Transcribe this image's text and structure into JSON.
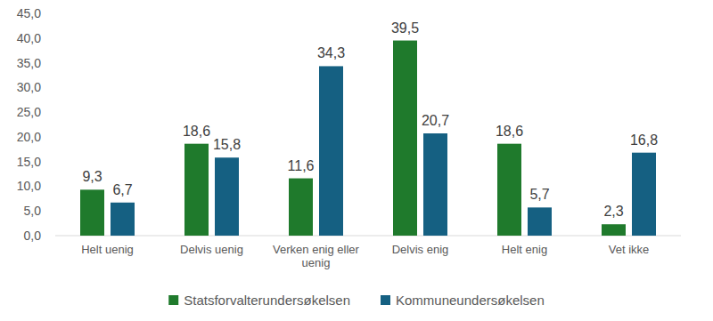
{
  "chart_data": {
    "type": "bar",
    "categories": [
      "Helt uenig",
      "Delvis uenig",
      "Verken enig eller uenig",
      "Delvis enig",
      "Helt enig",
      "Vet ikke"
    ],
    "series": [
      {
        "name": "Statsforvalterundersøkelsen",
        "color": "#1f7a2c",
        "values": [
          9.3,
          18.6,
          11.6,
          39.5,
          18.6,
          2.3
        ],
        "value_labels": [
          "9,3",
          "18,6",
          "11,6",
          "39,5",
          "18,6",
          "2,3"
        ]
      },
      {
        "name": "Kommuneundersøkelsen",
        "color": "#156082",
        "values": [
          6.7,
          15.8,
          34.3,
          20.7,
          5.7,
          16.8
        ],
        "value_labels": [
          "6,7",
          "15,8",
          "34,3",
          "20,7",
          "5,7",
          "16,8"
        ]
      }
    ],
    "ylim": [
      0,
      45
    ],
    "yticks": [
      {
        "value": 0,
        "label": "0,0"
      },
      {
        "value": 5,
        "label": "5,0"
      },
      {
        "value": 10,
        "label": "10,0"
      },
      {
        "value": 15,
        "label": "15,0"
      },
      {
        "value": 20,
        "label": "20,0"
      },
      {
        "value": 25,
        "label": "25,0"
      },
      {
        "value": 30,
        "label": "30,0"
      },
      {
        "value": 35,
        "label": "35,0"
      },
      {
        "value": 40,
        "label": "40,0"
      },
      {
        "value": 45,
        "label": "45,0"
      }
    ],
    "grid": false,
    "legend": "bottom",
    "data_labels": true
  }
}
